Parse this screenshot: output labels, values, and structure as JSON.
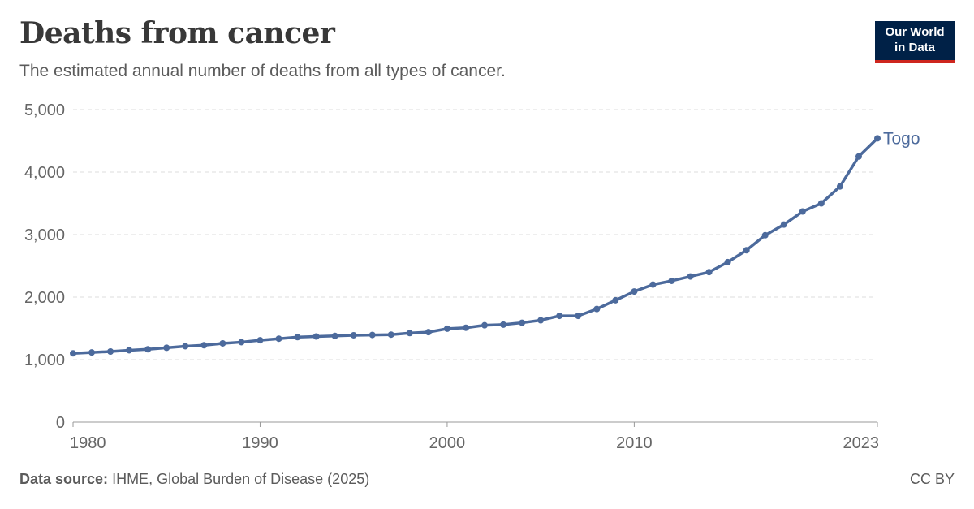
{
  "header": {
    "title": "Deaths from cancer",
    "subtitle": "The estimated annual number of deaths from all types of cancer."
  },
  "logo": {
    "line1": "Our World",
    "line2": "in Data"
  },
  "footer": {
    "source_label": "Data source:",
    "source_text": "IHME, Global Burden of Disease (2025)",
    "license": "CC BY"
  },
  "colors": {
    "series": "#4c6a9c",
    "grid": "#dddddd",
    "axis_text": "#666666",
    "logo_bg": "#002147",
    "logo_accent": "#ce261e"
  },
  "chart_data": {
    "type": "line",
    "title": "Deaths from cancer",
    "subtitle": "The estimated annual number of deaths from all types of cancer.",
    "xlabel": "",
    "ylabel": "",
    "xlim": [
      1980,
      2023
    ],
    "ylim": [
      0,
      5000
    ],
    "x_ticks": [
      1980,
      1990,
      2000,
      2010,
      2023
    ],
    "x_tick_labels": [
      "1980",
      "1990",
      "2000",
      "2010",
      "2023"
    ],
    "y_ticks": [
      0,
      1000,
      2000,
      3000,
      4000,
      5000
    ],
    "y_tick_labels": [
      "0",
      "1,000",
      "2,000",
      "3,000",
      "4,000",
      "5,000"
    ],
    "grid": "horizontal dashed",
    "legend": "end-of-line label",
    "series": [
      {
        "name": "Togo",
        "x": [
          1980,
          1981,
          1982,
          1983,
          1984,
          1985,
          1986,
          1987,
          1988,
          1989,
          1990,
          1991,
          1992,
          1993,
          1994,
          1995,
          1996,
          1997,
          1998,
          1999,
          2000,
          2001,
          2002,
          2003,
          2004,
          2005,
          2006,
          2007,
          2008,
          2009,
          2010,
          2011,
          2012,
          2013,
          2014,
          2015,
          2016,
          2017,
          2018,
          2019,
          2020,
          2021,
          2022,
          2023
        ],
        "y": [
          1100,
          1115,
          1130,
          1150,
          1165,
          1190,
          1215,
          1230,
          1260,
          1280,
          1310,
          1335,
          1360,
          1370,
          1380,
          1390,
          1395,
          1400,
          1425,
          1440,
          1495,
          1510,
          1550,
          1560,
          1590,
          1630,
          1700,
          1700,
          1810,
          1950,
          2090,
          2200,
          2260,
          2330,
          2400,
          2560,
          2750,
          2990,
          3160,
          3370,
          3500,
          3770,
          4250,
          4540
        ]
      }
    ]
  }
}
